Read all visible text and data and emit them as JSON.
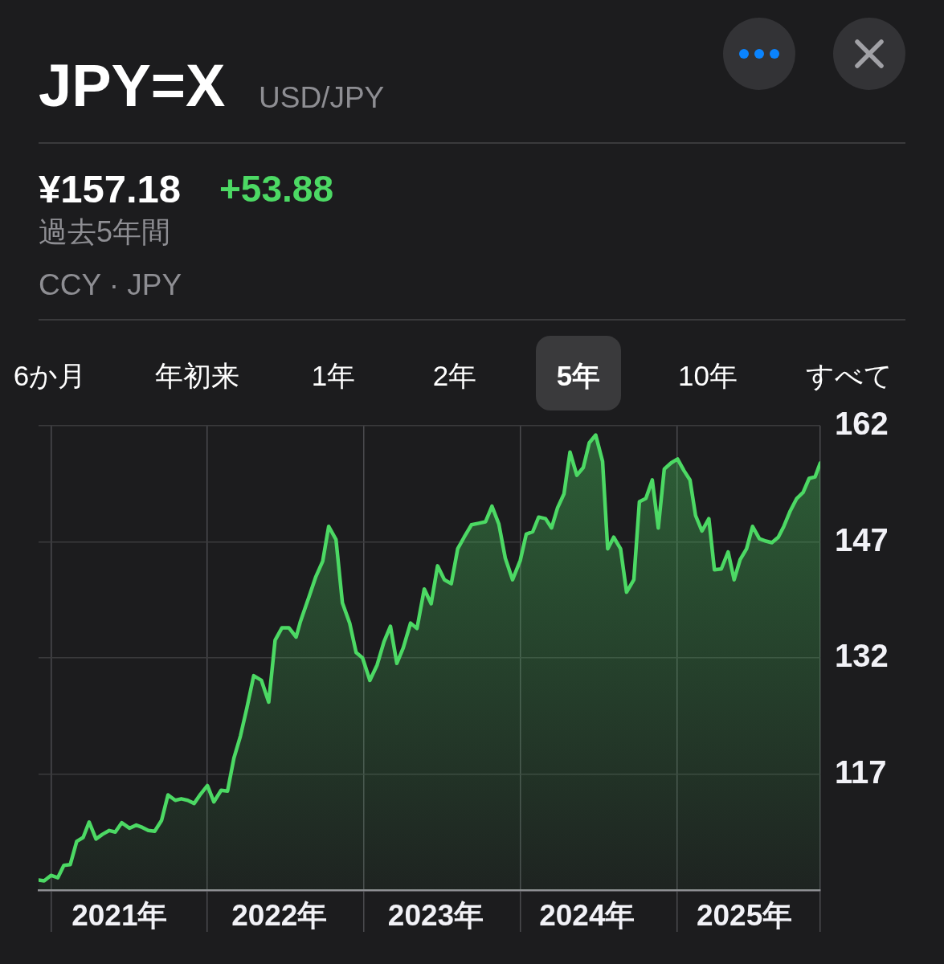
{
  "chart_data": {
    "type": "area",
    "title": "JPY=X",
    "subtitle": "USD/JPY",
    "annotations": [
      "¥157.18",
      "+53.88",
      "過去5年間",
      "CCY · JPY",
      "6か月",
      "年初来",
      "1年",
      "2年",
      "5年",
      "10年",
      "すべて"
    ],
    "x": [
      "2020-12-03",
      "2020-12-16",
      "2021-01-01",
      "2021-01-17",
      "2021-01-31",
      "2021-02-15",
      "2021-03-02",
      "2021-03-17",
      "2021-03-31",
      "2021-04-16",
      "2021-05-01",
      "2021-05-17",
      "2021-05-31",
      "2021-06-15",
      "2021-07-03",
      "2021-07-19",
      "2021-08-02",
      "2021-08-16",
      "2021-08-31",
      "2021-09-16",
      "2021-10-01",
      "2021-10-18",
      "2021-11-01",
      "2021-11-16",
      "2021-12-01",
      "2021-12-16",
      "2022-01-01",
      "2022-01-16",
      "2022-02-02",
      "2022-02-17",
      "2022-03-04",
      "2022-03-19",
      "2022-04-03",
      "2022-04-19",
      "2022-05-07",
      "2022-05-24",
      "2022-06-08",
      "2022-06-24",
      "2022-07-10",
      "2022-07-27",
      "2022-08-06",
      "2022-08-26",
      "2022-09-11",
      "2022-09-27",
      "2022-10-11",
      "2022-10-28",
      "2022-11-12",
      "2022-11-29",
      "2022-12-14",
      "2022-12-29",
      "2023-01-15",
      "2023-02-01",
      "2023-02-17",
      "2023-03-04",
      "2023-03-19",
      "2023-04-03",
      "2023-04-20",
      "2023-05-05",
      "2023-05-22",
      "2023-06-07",
      "2023-06-22",
      "2023-07-08",
      "2023-07-24",
      "2023-08-08",
      "2023-08-23",
      "2023-09-09",
      "2023-09-26",
      "2023-10-12",
      "2023-10-27",
      "2023-11-12",
      "2023-11-27",
      "2023-12-14",
      "2024-01-01",
      "2024-01-15",
      "2024-01-30",
      "2024-02-13",
      "2024-02-29",
      "2024-03-14",
      "2024-03-28",
      "2024-04-12",
      "2024-04-26",
      "2024-05-12",
      "2024-05-27",
      "2024-06-10",
      "2024-06-25",
      "2024-07-11",
      "2024-07-23",
      "2024-08-06",
      "2024-08-22",
      "2024-09-05",
      "2024-09-22",
      "2024-10-05",
      "2024-10-20",
      "2024-11-04",
      "2024-11-18",
      "2024-12-02",
      "2024-12-18",
      "2025-01-02",
      "2025-01-17",
      "2025-01-31",
      "2025-02-13",
      "2025-02-28",
      "2025-03-16",
      "2025-03-29",
      "2025-04-14",
      "2025-04-30",
      "2025-05-14",
      "2025-05-28",
      "2025-06-12",
      "2025-06-26",
      "2025-07-12",
      "2025-07-27",
      "2025-08-10",
      "2025-08-25",
      "2025-09-07",
      "2025-09-22",
      "2025-10-07",
      "2025-10-22",
      "2025-11-05",
      "2025-11-19",
      "2025-12-01"
    ],
    "values": [
      103.3,
      103.2,
      103.9,
      103.6,
      105.2,
      105.3,
      108.3,
      108.8,
      110.8,
      108.6,
      109.2,
      109.7,
      109.5,
      110.7,
      110.0,
      110.4,
      110.1,
      109.7,
      109.6,
      111.0,
      114.3,
      113.6,
      113.8,
      113.6,
      113.2,
      114.4,
      115.5,
      113.4,
      114.9,
      114.8,
      119.1,
      121.9,
      125.5,
      129.7,
      129.1,
      126.3,
      134.3,
      135.9,
      135.9,
      134.7,
      136.7,
      139.9,
      142.5,
      144.5,
      149.0,
      147.3,
      139.1,
      136.5,
      132.7,
      132.0,
      129.1,
      131.1,
      134.1,
      136.1,
      131.3,
      133.3,
      136.5,
      135.8,
      140.9,
      139.0,
      143.9,
      142.1,
      141.6,
      146.1,
      147.6,
      149.2,
      149.4,
      149.6,
      151.6,
      149.3,
      144.9,
      142.1,
      144.6,
      148.0,
      148.3,
      150.2,
      150.0,
      148.8,
      151.4,
      153.2,
      158.6,
      155.6,
      156.6,
      159.8,
      160.8,
      157.4,
      146.1,
      147.6,
      146.1,
      140.5,
      142.1,
      152.2,
      152.6,
      155.0,
      148.8,
      156.4,
      157.2,
      157.7,
      156.2,
      155.0,
      150.4,
      148.4,
      150.0,
      143.4,
      143.5,
      145.7,
      142.1,
      144.7,
      146.1,
      149.0,
      147.4,
      147.1,
      146.9,
      147.6,
      149.0,
      151.0,
      152.6,
      153.4,
      155.2,
      155.4,
      157.2
    ],
    "color": "#4cd964",
    "xlim": [
      "2020-12-03",
      "2025-12-01"
    ],
    "xticks": [
      {
        "value": "2021-01-01",
        "label": null
      },
      {
        "value": "2021-06-10",
        "label": "2021年"
      },
      {
        "value": "2022-01-01",
        "label": null
      },
      {
        "value": "2022-06-18",
        "label": "2022年"
      },
      {
        "value": "2023-01-01",
        "label": null
      },
      {
        "value": "2023-06-18",
        "label": "2023年"
      },
      {
        "value": "2024-01-01",
        "label": null
      },
      {
        "value": "2024-06-05",
        "label": "2024年"
      },
      {
        "value": "2025-01-01",
        "label": null
      },
      {
        "value": "2025-06-07",
        "label": "2025年"
      },
      {
        "value": "2025-12-01",
        "label": null
      }
    ],
    "ylim": [
      102,
      162
    ],
    "yticks": [
      117,
      132,
      147,
      162
    ],
    "grid": true,
    "marker": "none",
    "line_style": "solid"
  }
}
